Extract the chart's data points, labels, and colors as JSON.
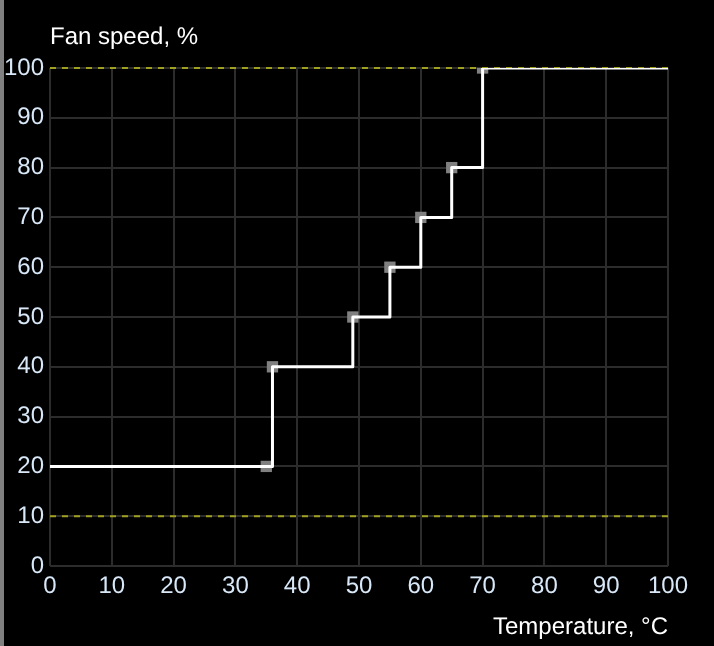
{
  "chart_data": {
    "type": "step",
    "ylabel": "Fan speed, %",
    "xlabel": "Temperature, °C",
    "xlim": [
      0,
      100
    ],
    "xticks": [
      0,
      10,
      20,
      30,
      40,
      50,
      60,
      70,
      80,
      90,
      100
    ],
    "ylim": [
      0,
      100
    ],
    "yticks": [
      0,
      10,
      20,
      30,
      40,
      50,
      60,
      70,
      80,
      90,
      100
    ],
    "grid": true,
    "legend": false,
    "series": [
      {
        "type": "step",
        "color": "#ffffff",
        "marker": "none",
        "line_style": "solid",
        "x": [
          0,
          35,
          36,
          49,
          55,
          60,
          65,
          70,
          100
        ],
        "values": [
          20,
          20,
          40,
          50,
          60,
          70,
          80,
          100,
          100
        ]
      },
      {
        "type": "scatter",
        "color": "#808080",
        "marker": "square",
        "x": [
          35,
          36,
          49,
          55,
          60,
          65,
          70
        ],
        "values": [
          20,
          40,
          50,
          60,
          70,
          80,
          100
        ]
      }
    ],
    "ref_lines": [
      {
        "axis": "y",
        "value": 10,
        "color": "#a0a020",
        "line_style": "dashed"
      },
      {
        "axis": "y",
        "value": 100,
        "color": "#a0a020",
        "line_style": "dashed"
      }
    ]
  }
}
